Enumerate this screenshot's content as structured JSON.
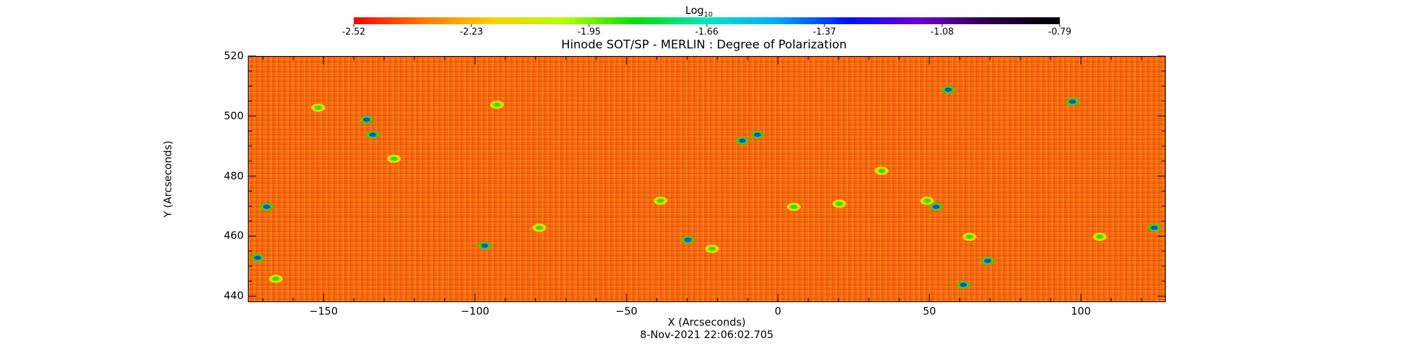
{
  "colorbar": {
    "label": "Log",
    "label_sub": "10",
    "ticks": [
      "-2.52",
      "-2.23",
      "-1.95",
      "-1.66",
      "-1.37",
      "-1.08",
      "-0.79"
    ],
    "colors": [
      "#ff0000",
      "#ff7a00",
      "#ffd000",
      "#b0ff00",
      "#00e000",
      "#00e8c0",
      "#00a8ff",
      "#0010ff",
      "#6a00d8",
      "#2a0048",
      "#000000"
    ]
  },
  "title": "Hinode SOT/SP - MERLIN : Degree of Polarization",
  "timestamp": "8-Nov-2021 22:06:02.705",
  "chart_data": {
    "type": "heatmap",
    "title": "Hinode SOT/SP - MERLIN : Degree of Polarization",
    "xlabel": "X (Arcseconds)",
    "ylabel": "Y (Arcseconds)",
    "xlim": [
      -175,
      128
    ],
    "ylim": [
      438,
      520
    ],
    "xticks": [
      -150,
      -100,
      -50,
      0,
      50,
      100
    ],
    "yticks": [
      440,
      460,
      480,
      500,
      520
    ],
    "colorscale": "log10",
    "colorbar_range": [
      -2.52,
      -0.79
    ],
    "patches": [
      {
        "x": -152,
        "y": 503,
        "level": "green"
      },
      {
        "x": -136,
        "y": 499,
        "level": "blue"
      },
      {
        "x": -134,
        "y": 494,
        "level": "blue"
      },
      {
        "x": -127,
        "y": 486,
        "level": "green"
      },
      {
        "x": -169,
        "y": 470,
        "level": "blue"
      },
      {
        "x": -172,
        "y": 453,
        "level": "blue"
      },
      {
        "x": -166,
        "y": 446,
        "level": "green"
      },
      {
        "x": -97,
        "y": 457,
        "level": "blue"
      },
      {
        "x": -79,
        "y": 463,
        "level": "green"
      },
      {
        "x": -93,
        "y": 504,
        "level": "green"
      },
      {
        "x": -39,
        "y": 472,
        "level": "green"
      },
      {
        "x": -30,
        "y": 459,
        "level": "blue"
      },
      {
        "x": -22,
        "y": 456,
        "level": "green"
      },
      {
        "x": -12,
        "y": 492,
        "level": "blue"
      },
      {
        "x": -7,
        "y": 494,
        "level": "blue"
      },
      {
        "x": 5,
        "y": 470,
        "level": "green"
      },
      {
        "x": 20,
        "y": 471,
        "level": "green"
      },
      {
        "x": 34,
        "y": 482,
        "level": "green"
      },
      {
        "x": 49,
        "y": 472,
        "level": "green"
      },
      {
        "x": 52,
        "y": 470,
        "level": "blue"
      },
      {
        "x": 56,
        "y": 509,
        "level": "blue"
      },
      {
        "x": 63,
        "y": 460,
        "level": "green"
      },
      {
        "x": 69,
        "y": 452,
        "level": "blue"
      },
      {
        "x": 61,
        "y": 444,
        "level": "blue"
      },
      {
        "x": 97,
        "y": 505,
        "level": "blue"
      },
      {
        "x": 106,
        "y": 460,
        "level": "green"
      },
      {
        "x": 124,
        "y": 463,
        "level": "blue"
      }
    ]
  }
}
